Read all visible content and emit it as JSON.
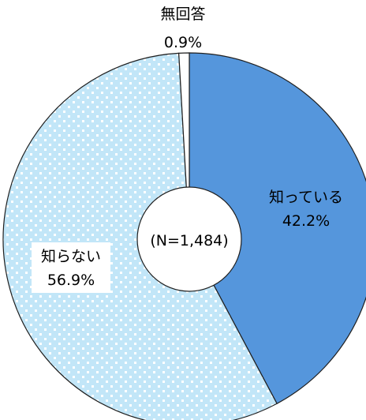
{
  "chart_data": {
    "type": "pie",
    "donut": true,
    "start_angle_deg": 0,
    "direction": "clockwise",
    "center_label": "(N=1,484)",
    "slices": [
      {
        "label": "知っている",
        "value": 42.2,
        "value_label": "42.2%",
        "color": "#5596dc",
        "pattern": "solid"
      },
      {
        "label": "知らない",
        "value": 56.9,
        "value_label": "56.9%",
        "color": "#c2e6f8",
        "pattern": "dotted"
      },
      {
        "label": "無回答",
        "value": 0.9,
        "value_label": "0.9%",
        "color": "#ffffff",
        "pattern": "solid"
      }
    ]
  }
}
